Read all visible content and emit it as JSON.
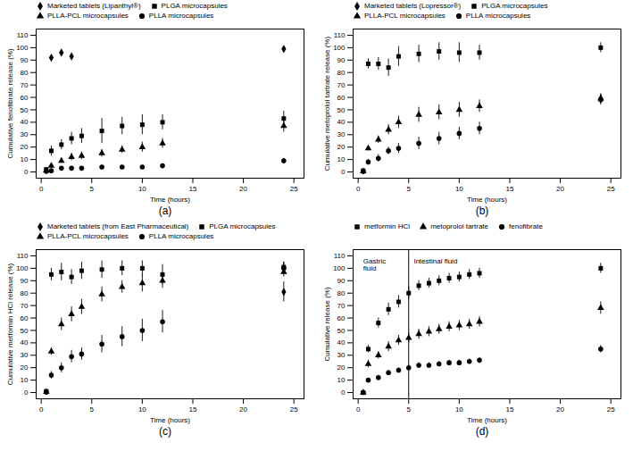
{
  "chart_data": [
    {
      "type": "scatter",
      "title": "(a)",
      "xlabel": "Time (hours)",
      "ylabel": "Cumulative fenofibrate release (%)",
      "xlim": [
        -0.5,
        26
      ],
      "ylim": [
        -5,
        115
      ],
      "xticks": [
        0,
        5,
        10,
        15,
        20,
        25
      ],
      "yticks": [
        0,
        10,
        20,
        30,
        40,
        50,
        60,
        70,
        80,
        90,
        100,
        110
      ],
      "legend": "top",
      "series": [
        {
          "name": "Marketed tablets (Lipanthyl®)",
          "color": "black",
          "marker": "diamond",
          "x": [
            1,
            2,
            3,
            24
          ],
          "values": [
            92,
            96,
            93,
            99
          ],
          "yerr": [
            0,
            0,
            0,
            0
          ]
        },
        {
          "name": "PLGA microcapsules",
          "color": "black",
          "marker": "square",
          "x": [
            0.5,
            1,
            2,
            3,
            4,
            6,
            8,
            10,
            12,
            24
          ],
          "values": [
            2,
            17,
            22,
            27,
            29,
            33,
            37,
            38,
            40,
            43
          ],
          "yerr": [
            1,
            4,
            4,
            5,
            6,
            10,
            7,
            8,
            6,
            6
          ]
        },
        {
          "name": "PLLA-PCL microcapsules",
          "color": "black",
          "marker": "triangle",
          "x": [
            0.5,
            1,
            2,
            3,
            4,
            6,
            8,
            10,
            12,
            24
          ],
          "values": [
            1,
            5,
            9,
            12,
            13,
            15,
            18,
            20,
            23,
            37
          ],
          "yerr": [
            0.5,
            2,
            2,
            3,
            3,
            3,
            3,
            4,
            4,
            5
          ]
        },
        {
          "name": "PLLA microcapsules",
          "color": "black",
          "marker": "circle",
          "x": [
            0.5,
            1,
            2,
            3,
            4,
            6,
            8,
            10,
            12,
            24
          ],
          "values": [
            0.5,
            1,
            3,
            3,
            3,
            4,
            4,
            4,
            5,
            9
          ],
          "yerr": [
            0.3,
            0.5,
            1,
            1,
            1,
            1,
            1,
            1,
            1,
            2
          ]
        }
      ]
    },
    {
      "type": "scatter",
      "title": "(b)",
      "xlabel": "Time (hours)",
      "ylabel": "Cumulative metoprolol tartrate release (%)",
      "xlim": [
        -0.5,
        26
      ],
      "ylim": [
        -5,
        115
      ],
      "xticks": [
        0,
        5,
        10,
        15,
        20,
        25
      ],
      "yticks": [
        0,
        10,
        20,
        30,
        40,
        50,
        60,
        70,
        80,
        90,
        100,
        110
      ],
      "legend": "top",
      "series": [
        {
          "name": "Marketed tablets (Lopressor®)",
          "color": "black",
          "marker": "diamond",
          "x": [
            24
          ],
          "values": [
            59
          ],
          "yerr": [
            3
          ]
        },
        {
          "name": "PLGA microcapsules",
          "color": "black",
          "marker": "square",
          "x": [
            0.5,
            1,
            2,
            3,
            4,
            6,
            8,
            10,
            12,
            24
          ],
          "values": [
            1,
            87,
            87,
            84,
            93,
            95,
            97,
            96,
            96,
            100
          ],
          "yerr": [
            0.5,
            4,
            5,
            7,
            8,
            7,
            7,
            8,
            6,
            4
          ]
        },
        {
          "name": "PLLA-PCL microcapsules",
          "color": "black",
          "marker": "triangle",
          "x": [
            0.5,
            1,
            2,
            3,
            4,
            6,
            8,
            10,
            12,
            24
          ],
          "values": [
            0.5,
            19,
            26,
            34,
            40,
            46,
            48,
            50,
            53,
            59
          ],
          "yerr": [
            0.3,
            2,
            3,
            4,
            5,
            6,
            6,
            6,
            5,
            4
          ]
        },
        {
          "name": "PLLA microcapsules",
          "color": "black",
          "marker": "circle",
          "x": [
            0.5,
            1,
            2,
            3,
            4,
            6,
            8,
            10,
            12,
            24
          ],
          "values": [
            0.3,
            8,
            11,
            17,
            19,
            23,
            27,
            31,
            35,
            58
          ],
          "yerr": [
            0.2,
            2,
            3,
            3,
            4,
            5,
            5,
            5,
            5,
            4
          ]
        }
      ]
    },
    {
      "type": "scatter",
      "title": "(c)",
      "xlabel": "Time (hours)",
      "ylabel": "Cumulative metformin HCl release (%)",
      "xlim": [
        -0.5,
        26
      ],
      "ylim": [
        -5,
        115
      ],
      "xticks": [
        0,
        5,
        10,
        15,
        20,
        25
      ],
      "yticks": [
        0,
        10,
        20,
        30,
        40,
        50,
        60,
        70,
        80,
        90,
        100,
        110
      ],
      "legend": "top",
      "series": [
        {
          "name": "Marketed tablets (from East Pharmaceutical)",
          "color": "black",
          "marker": "diamond",
          "x": [
            24
          ],
          "values": [
            81
          ],
          "yerr": [
            8
          ]
        },
        {
          "name": "PLGA microcapsules",
          "color": "black",
          "marker": "square",
          "x": [
            0.5,
            1,
            2,
            3,
            4,
            6,
            8,
            10,
            12,
            24
          ],
          "values": [
            1,
            95,
            97,
            93,
            98,
            99,
            100,
            100,
            95,
            101
          ],
          "yerr": [
            0.5,
            5,
            7,
            6,
            7,
            7,
            6,
            6,
            8,
            4
          ]
        },
        {
          "name": "PLLA-PCL microcapsules",
          "color": "black",
          "marker": "triangle",
          "x": [
            0.5,
            1,
            2,
            3,
            4,
            6,
            8,
            10,
            12,
            24
          ],
          "values": [
            0.5,
            33,
            55,
            63,
            69,
            79,
            85,
            88,
            90,
            97
          ],
          "yerr": [
            0.3,
            3,
            5,
            6,
            6,
            6,
            5,
            7,
            6,
            4
          ]
        },
        {
          "name": "PLLA microcapsules",
          "color": "black",
          "marker": "circle",
          "x": [
            0.5,
            1,
            2,
            3,
            4,
            6,
            8,
            10,
            12,
            24
          ],
          "values": [
            0.3,
            14,
            20,
            29,
            31,
            39,
            45,
            50,
            57,
            100
          ],
          "yerr": [
            0.2,
            3,
            4,
            5,
            5,
            7,
            8,
            9,
            9,
            5
          ]
        }
      ]
    },
    {
      "type": "scatter",
      "title": "(d)",
      "xlabel": "Time (hours)",
      "ylabel": "Cumulative release (%)",
      "xlim": [
        -0.5,
        26
      ],
      "ylim": [
        -5,
        115
      ],
      "xticks": [
        0,
        5,
        10,
        15,
        20,
        25
      ],
      "yticks": [
        0,
        10,
        20,
        30,
        40,
        50,
        60,
        70,
        80,
        90,
        100,
        110
      ],
      "legend": "top",
      "vlines": [
        5
      ],
      "annotations": [
        {
          "text": "Gastric\nfluid",
          "x": 0.5,
          "y": 108
        },
        {
          "text": "Intestinal fluid",
          "x": 5.5,
          "y": 108
        }
      ],
      "series": [
        {
          "name": "metformin HCl",
          "color": "black",
          "marker": "square",
          "x": [
            0.5,
            1,
            2,
            3,
            4,
            5,
            6,
            7,
            8,
            9,
            10,
            11,
            12,
            24
          ],
          "values": [
            0,
            35,
            56,
            67,
            73,
            80,
            86,
            88,
            90,
            92,
            93,
            95,
            96,
            100
          ],
          "yerr": [
            0,
            3,
            4,
            5,
            5,
            5,
            4,
            4,
            4,
            4,
            4,
            4,
            4,
            4
          ]
        },
        {
          "name": "metoprolol tartrate",
          "color": "black",
          "marker": "triangle",
          "x": [
            0.5,
            1,
            2,
            3,
            4,
            5,
            6,
            7,
            8,
            9,
            10,
            11,
            12,
            24
          ],
          "values": [
            0,
            23,
            30,
            37,
            42,
            44,
            47,
            49,
            51,
            53,
            54,
            55,
            57,
            68
          ],
          "yerr": [
            0,
            3,
            3,
            4,
            4,
            4,
            4,
            4,
            4,
            4,
            4,
            4,
            4,
            5
          ]
        },
        {
          "name": "fenofibrate",
          "color": "black",
          "marker": "circle",
          "x": [
            0.5,
            1,
            2,
            3,
            4,
            5,
            6,
            7,
            8,
            9,
            10,
            11,
            12,
            24
          ],
          "values": [
            0,
            10,
            12,
            16,
            18,
            20,
            22,
            22,
            23,
            24,
            24,
            25,
            26,
            35
          ],
          "yerr": [
            0,
            1,
            2,
            2,
            2,
            2,
            2,
            2,
            2,
            2,
            2,
            2,
            2,
            3
          ]
        }
      ]
    }
  ]
}
